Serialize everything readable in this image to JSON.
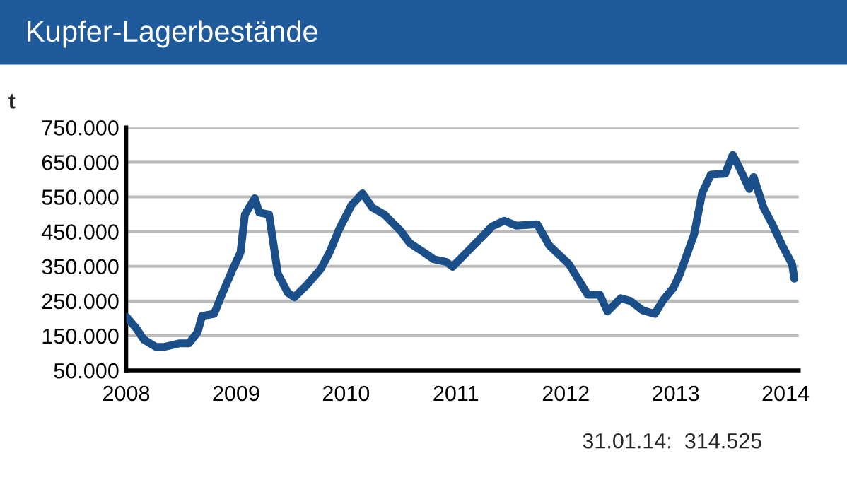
{
  "chart_data": {
    "type": "line",
    "title": "Kupfer-Lagerbestände",
    "ylabel": "t",
    "x": [
      2008.0,
      2008.09,
      2008.16,
      2008.27,
      2008.35,
      2008.48,
      2008.57,
      2008.65,
      2008.69,
      2008.8,
      2008.87,
      2008.97,
      2009.04,
      2009.08,
      2009.17,
      2009.21,
      2009.3,
      2009.38,
      2009.47,
      2009.53,
      2009.64,
      2009.77,
      2009.85,
      2009.94,
      2010.05,
      2010.15,
      2010.24,
      2010.35,
      2010.5,
      2010.58,
      2010.71,
      2010.8,
      2010.91,
      2010.97,
      2011.12,
      2011.33,
      2011.44,
      2011.55,
      2011.74,
      2011.85,
      2012.03,
      2012.2,
      2012.31,
      2012.38,
      2012.5,
      2012.59,
      2012.7,
      2012.81,
      2012.89,
      2012.98,
      2013.04,
      2013.17,
      2013.24,
      2013.32,
      2013.45,
      2013.52,
      2013.58,
      2013.67,
      2013.71,
      2013.8,
      2013.88,
      2013.97,
      2014.06,
      2014.08
    ],
    "series": [
      {
        "color": "#1a4f8a",
        "values": [
          205000,
          172000,
          139000,
          118000,
          118000,
          128000,
          128000,
          160000,
          207000,
          213000,
          268000,
          342000,
          390000,
          499000,
          546000,
          505000,
          499000,
          329000,
          274000,
          261000,
          295000,
          342000,
          390000,
          458000,
          526000,
          560000,
          519000,
          499000,
          451000,
          417000,
          390000,
          370000,
          363000,
          349000,
          397000,
          465000,
          481000,
          467000,
          471000,
          410000,
          356000,
          268000,
          268000,
          220000,
          258000,
          250000,
          223000,
          213000,
          254000,
          288000,
          329000,
          444000,
          560000,
          614000,
          617000,
          671000,
          634000,
          573000,
          607000,
          519000,
          471000,
          410000,
          356000,
          314525
        ]
      }
    ],
    "xlim": [
      2008,
      2014.12
    ],
    "xticks": [
      2008,
      2009,
      2010,
      2011,
      2012,
      2013,
      2014
    ],
    "ylim": [
      50000,
      750000
    ],
    "yticks": [
      {
        "value": 50000,
        "label": "50.000"
      },
      {
        "value": 150000,
        "label": "150.000"
      },
      {
        "value": 250000,
        "label": "250.000"
      },
      {
        "value": 350000,
        "label": "350.000"
      },
      {
        "value": 450000,
        "label": "450.000"
      },
      {
        "value": 550000,
        "label": "550.000"
      },
      {
        "value": 650000,
        "label": "650.000"
      },
      {
        "value": 750000,
        "label": "750.000"
      }
    ],
    "grid": "y",
    "legend": false,
    "marker": "none",
    "line_style": "solid",
    "annotations": [
      "31.01.14:  314.525"
    ]
  }
}
